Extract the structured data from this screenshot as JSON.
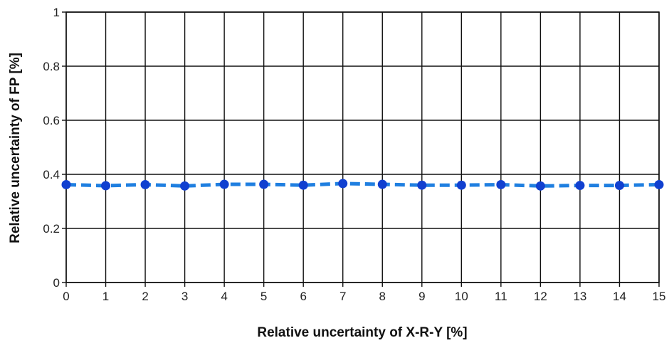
{
  "chart_data": {
    "type": "line",
    "title": "",
    "xlabel": "Relative uncertainty of X-R-Y [%]",
    "ylabel": "Relative uncertainty of FP  [%]",
    "xlim": [
      0,
      15
    ],
    "ylim": [
      0,
      1
    ],
    "x_ticks": [
      "0",
      "1",
      "2",
      "3",
      "4",
      "5",
      "6",
      "7",
      "8",
      "9",
      "10",
      "11",
      "12",
      "13",
      "14",
      "15"
    ],
    "y_ticks": [
      "0",
      "0.2",
      "0.4",
      "0.6",
      "0.8",
      "1"
    ],
    "grid": true,
    "series": [
      {
        "color": "#1f7fe0",
        "marker_color": "#1140d0",
        "line_style": "dashed",
        "x": [
          0,
          1,
          2,
          3,
          4,
          5,
          6,
          7,
          8,
          9,
          10,
          11,
          12,
          13,
          14,
          15
        ],
        "y": [
          0.362,
          0.358,
          0.362,
          0.357,
          0.363,
          0.363,
          0.36,
          0.366,
          0.363,
          0.36,
          0.36,
          0.362,
          0.357,
          0.359,
          0.359,
          0.362
        ]
      }
    ]
  }
}
